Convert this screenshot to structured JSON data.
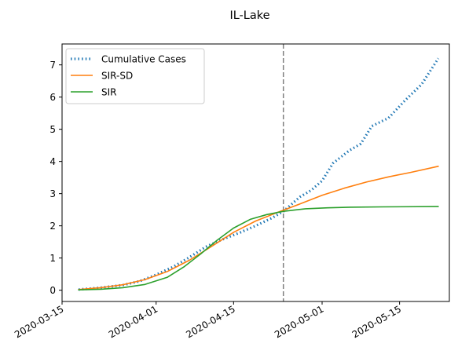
{
  "chart_data": {
    "type": "line",
    "title": "IL-Lake",
    "xlabel": "",
    "ylabel": "",
    "x_axis": {
      "type": "date",
      "range": [
        "2020-03-15",
        "2020-05-24"
      ],
      "ticks": [
        "2020-03-15",
        "2020-04-01",
        "2020-04-15",
        "2020-05-01",
        "2020-05-15"
      ]
    },
    "y_axis": {
      "range": [
        -0.35,
        7.65
      ],
      "ticks": [
        0,
        1,
        2,
        3,
        4,
        5,
        6,
        7
      ],
      "tick_labels": [
        "0",
        "1",
        "2",
        "3",
        "4",
        "5",
        "6",
        "7"
      ]
    },
    "grid": false,
    "legend": {
      "placement": "top-left"
    },
    "vline": {
      "x": "2020-04-24",
      "color": "#808080",
      "style": "dashed"
    },
    "series": [
      {
        "name": "Cumulative Cases",
        "color": "#1f77b4",
        "style": "dotted",
        "x": [
          "2020-03-18",
          "2020-03-22",
          "2020-03-26",
          "2020-03-29",
          "2020-04-01",
          "2020-04-04",
          "2020-04-07",
          "2020-04-10",
          "2020-04-13",
          "2020-04-16",
          "2020-04-19",
          "2020-04-22",
          "2020-04-24",
          "2020-04-27",
          "2020-04-29",
          "2020-05-01",
          "2020-05-03",
          "2020-05-06",
          "2020-05-08",
          "2020-05-10",
          "2020-05-13",
          "2020-05-16",
          "2020-05-19",
          "2020-05-22"
        ],
        "y": [
          0.02,
          0.08,
          0.16,
          0.28,
          0.48,
          0.72,
          1.02,
          1.35,
          1.58,
          1.78,
          2.0,
          2.25,
          2.45,
          2.9,
          3.1,
          3.4,
          3.95,
          4.35,
          4.55,
          5.1,
          5.35,
          5.9,
          6.4,
          7.2
        ]
      },
      {
        "name": "SIR-SD",
        "color": "#ff7f0e",
        "style": "solid",
        "x": [
          "2020-03-18",
          "2020-03-22",
          "2020-03-26",
          "2020-03-30",
          "2020-04-03",
          "2020-04-07",
          "2020-04-11",
          "2020-04-15",
          "2020-04-19",
          "2020-04-23",
          "2020-04-27",
          "2020-05-01",
          "2020-05-05",
          "2020-05-09",
          "2020-05-13",
          "2020-05-17",
          "2020-05-22"
        ],
        "y": [
          0.02,
          0.08,
          0.17,
          0.33,
          0.58,
          0.93,
          1.36,
          1.8,
          2.15,
          2.42,
          2.68,
          2.95,
          3.17,
          3.36,
          3.52,
          3.66,
          3.85
        ]
      },
      {
        "name": "SIR",
        "color": "#2ca02c",
        "style": "solid",
        "x": [
          "2020-03-18",
          "2020-03-22",
          "2020-03-26",
          "2020-03-30",
          "2020-04-03",
          "2020-04-06",
          "2020-04-09",
          "2020-04-12",
          "2020-04-15",
          "2020-04-18",
          "2020-04-21",
          "2020-04-24",
          "2020-04-28",
          "2020-05-02",
          "2020-05-06",
          "2020-05-12",
          "2020-05-22"
        ],
        "y": [
          0.01,
          0.03,
          0.08,
          0.18,
          0.4,
          0.72,
          1.12,
          1.55,
          1.93,
          2.2,
          2.35,
          2.45,
          2.53,
          2.56,
          2.58,
          2.59,
          2.6
        ]
      }
    ]
  }
}
